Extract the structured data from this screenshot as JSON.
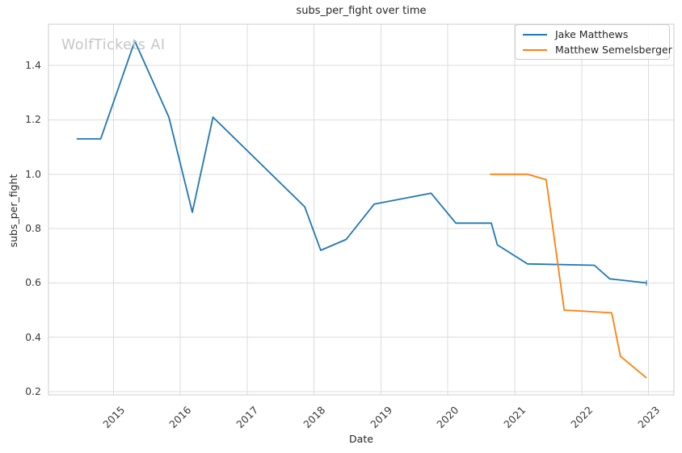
{
  "watermark": "WolfTickets AI",
  "style_colors": {
    "grid": "#dcdcdc",
    "spine": "#cccccc",
    "text": "#262626",
    "watermark": "#c6c6c6",
    "series_blue": "#1f77b4",
    "series_orange": "#ff7f0e"
  },
  "chart_data": {
    "type": "line",
    "title": "subs_per_fight over time",
    "xlabel": "Date",
    "ylabel": "subs_per_fight",
    "grid": true,
    "legend_position": "upper right",
    "xlim": [
      2014.03,
      2023.38
    ],
    "ylim": [
      0.188,
      1.552
    ],
    "x_ticks": [
      2015,
      2016,
      2017,
      2018,
      2019,
      2020,
      2021,
      2022,
      2023
    ],
    "x_tick_labels": [
      "2015",
      "2016",
      "2017",
      "2018",
      "2019",
      "2020",
      "2021",
      "2022",
      "2023"
    ],
    "y_ticks": [
      0.2,
      0.4,
      0.6,
      0.8,
      1.0,
      1.2,
      1.4
    ],
    "y_tick_labels": [
      "0.2",
      "0.4",
      "0.6",
      "0.8",
      "1.0",
      "1.2",
      "1.4"
    ],
    "series": [
      {
        "name": "Jake Matthews",
        "color": "#1f77b4",
        "end_tick_marker": true,
        "points": [
          [
            2014.45,
            1.13
          ],
          [
            2014.81,
            1.13
          ],
          [
            2015.32,
            1.49
          ],
          [
            2015.83,
            1.21
          ],
          [
            2016.18,
            0.86
          ],
          [
            2016.49,
            1.21
          ],
          [
            2017.86,
            0.88
          ],
          [
            2018.1,
            0.72
          ],
          [
            2018.48,
            0.76
          ],
          [
            2018.9,
            0.89
          ],
          [
            2019.75,
            0.93
          ],
          [
            2020.12,
            0.82
          ],
          [
            2020.65,
            0.82
          ],
          [
            2020.74,
            0.74
          ],
          [
            2021.19,
            0.67
          ],
          [
            2022.19,
            0.665
          ],
          [
            2022.42,
            0.615
          ],
          [
            2022.97,
            0.6
          ]
        ]
      },
      {
        "name": "Matthew Semelsberger",
        "color": "#ff7f0e",
        "end_tick_marker": false,
        "points": [
          [
            2020.63,
            1.0
          ],
          [
            2021.19,
            1.0
          ],
          [
            2021.47,
            0.98
          ],
          [
            2021.74,
            0.5
          ],
          [
            2022.45,
            0.49
          ],
          [
            2022.58,
            0.33
          ],
          [
            2022.97,
            0.25
          ]
        ]
      }
    ]
  }
}
